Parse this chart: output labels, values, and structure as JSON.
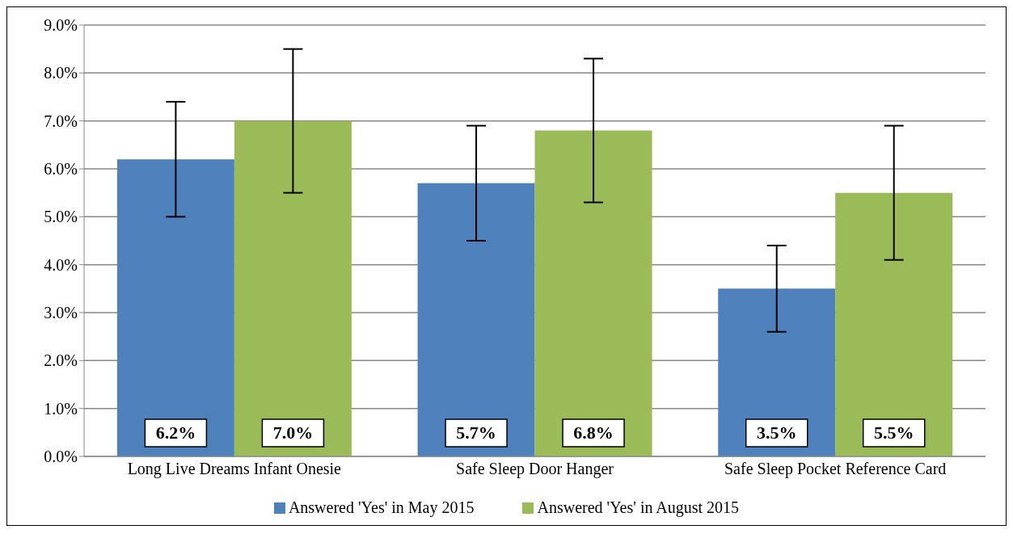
{
  "chart_data": {
    "type": "bar",
    "categories": [
      "Long Live Dreams Infant Onesie",
      "Safe Sleep Door Hanger",
      "Safe Sleep Pocket Reference Card"
    ],
    "series": [
      {
        "name": "Answered 'Yes' in May 2015",
        "color": "#4f81bd",
        "values": [
          6.2,
          5.7,
          3.5
        ],
        "value_labels": [
          "6.2%",
          "5.7%",
          "3.5%"
        ],
        "errors": [
          [
            5.0,
            7.4
          ],
          [
            4.5,
            6.9
          ],
          [
            2.6,
            4.4
          ]
        ]
      },
      {
        "name": "Answered 'Yes' in August 2015",
        "color": "#9bbb59",
        "values": [
          7.0,
          6.8,
          5.5
        ],
        "value_labels": [
          "7.0%",
          "6.8%",
          "5.5%"
        ],
        "errors": [
          [
            5.5,
            8.5
          ],
          [
            5.3,
            8.3
          ],
          [
            4.1,
            6.9
          ]
        ]
      }
    ],
    "ylim": [
      0,
      9
    ],
    "yticks": [
      {
        "value": 0,
        "label": "0.0%"
      },
      {
        "value": 1,
        "label": "1.0%"
      },
      {
        "value": 2,
        "label": "2.0%"
      },
      {
        "value": 3,
        "label": "3.0%"
      },
      {
        "value": 4,
        "label": "4.0%"
      },
      {
        "value": 5,
        "label": "5.0%"
      },
      {
        "value": 6,
        "label": "6.0%"
      },
      {
        "value": 7,
        "label": "7.0%"
      },
      {
        "value": 8,
        "label": "8.0%"
      },
      {
        "value": 9,
        "label": "9.0%"
      }
    ],
    "grid": "y",
    "legend": "bottom"
  }
}
